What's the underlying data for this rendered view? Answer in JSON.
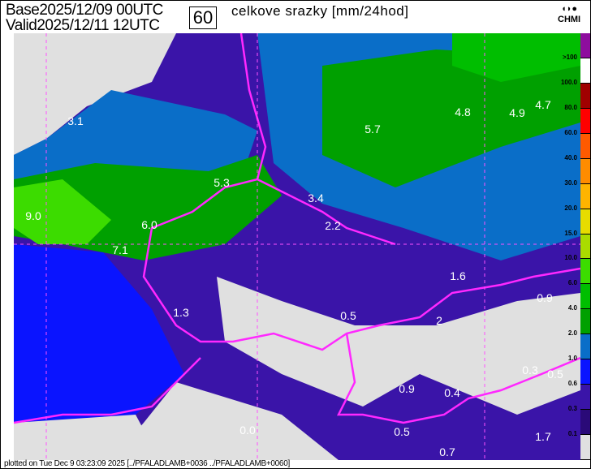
{
  "header": {
    "base_label": "Base",
    "base_time": "2025/12/09 00UTC",
    "valid_label": "Valid",
    "valid_time": "2025/12/11 12UTC",
    "lead_hours": "60",
    "title": "celkove srazky [mm/24hod]"
  },
  "logo": {
    "text": "CHMI"
  },
  "legend": {
    "labels": [
      ">100",
      "100.0",
      "80.0",
      "60.0",
      "40.0",
      "30.0",
      "20.0",
      "15.0",
      "10.0",
      "6.0",
      "4.0",
      "2.0",
      "1.0",
      "0.6",
      "0.3",
      "0.1"
    ],
    "colors": [
      "#8e0d9e",
      "#ffffff",
      "#a00000",
      "#ff0000",
      "#ff5a00",
      "#ff8c00",
      "#ffb400",
      "#e6dc00",
      "#aadc00",
      "#3cdc00",
      "#00be00",
      "#00a000",
      "#0a6ec8",
      "#0a14ff",
      "#3a14a8",
      "#2a0a78",
      "#e0e0e0"
    ]
  },
  "map_labels": [
    "3.1",
    "9.0",
    "5.3",
    "3.4",
    "6.0",
    "7.1",
    "2.2",
    "5.7",
    "4.8",
    "4.9",
    "4.7",
    "1.6",
    "0.9",
    "1.3",
    "0.5",
    "2",
    "0.9",
    "0.4",
    "0.3",
    "0.5",
    "0.0",
    "0.5",
    "0.7",
    "1.7"
  ],
  "footer": {
    "text": "plotted on Tue Dec  9 03:23:09 2025 [../PFALADLAMB+0036 ../PFALADLAMB+0060]"
  }
}
